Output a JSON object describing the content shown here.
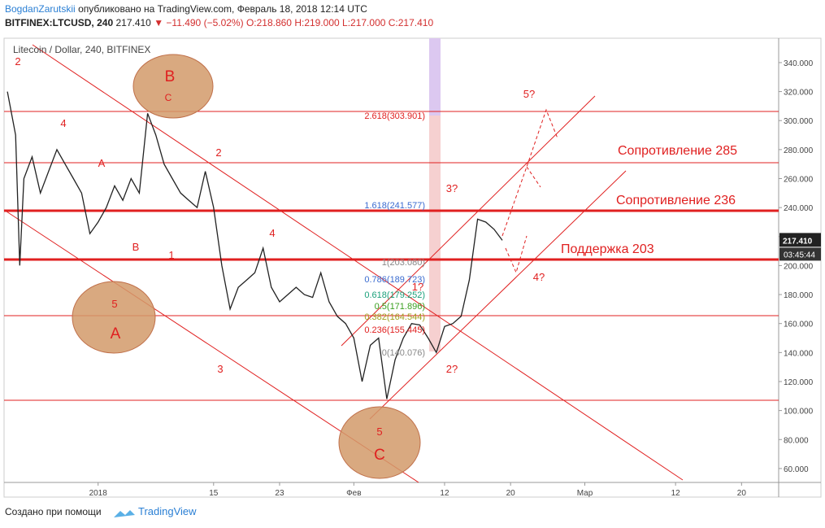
{
  "header": {
    "author": "BogdanZarutskii",
    "published": "опубликовано на TradingView.com, Февраль 18, 2018 12:14 UTC",
    "symbol": "BITFINEX:LTCUSD, 240",
    "last": "217.410",
    "change": "▼ −11.490 (−5.02%)",
    "ohlc": "O:218.860 H:219.000 L:217.000 C:217.410"
  },
  "chart_data": {
    "type": "line",
    "title": "Litecoin / Dollar, 240, BITFINEX",
    "color": "#222222",
    "x": [
      -11,
      -10,
      -9.5,
      -9,
      -8,
      -7,
      -6,
      -5,
      -4,
      -3,
      -2,
      -1,
      0,
      1,
      2,
      3,
      4,
      5,
      6,
      7,
      8,
      9,
      10,
      11,
      12,
      13,
      14,
      15,
      16,
      17,
      18,
      19,
      20,
      21,
      22,
      23,
      24,
      25,
      26,
      27,
      28,
      29,
      30,
      31,
      32,
      33,
      34,
      35,
      36,
      37,
      38,
      39,
      40,
      41,
      42,
      43,
      44,
      45,
      46,
      47,
      48,
      49
    ],
    "values": [
      320,
      290,
      200,
      260,
      275,
      250,
      265,
      280,
      270,
      260,
      250,
      222,
      230,
      240,
      255,
      245,
      260,
      250,
      305,
      290,
      270,
      260,
      250,
      245,
      240,
      265,
      240,
      200,
      170,
      185,
      190,
      195,
      212,
      185,
      175,
      180,
      185,
      180,
      178,
      195,
      175,
      165,
      160,
      150,
      120,
      145,
      150,
      108,
      135,
      150,
      160,
      159,
      150,
      140,
      158,
      160,
      165,
      190,
      232,
      230,
      225,
      217.41
    ],
    "xlim": [
      -11.4,
      82.5
    ],
    "ylim": [
      50.4,
      356.8
    ],
    "xticks": [
      {
        "value": 0,
        "label": "2018"
      },
      {
        "value": 14,
        "label": "15"
      },
      {
        "value": 22,
        "label": "23"
      },
      {
        "value": 31,
        "label": "Фев"
      },
      {
        "value": 42,
        "label": "12"
      },
      {
        "value": 50,
        "label": "20"
      },
      {
        "value": 59,
        "label": "Мар"
      },
      {
        "value": 70,
        "label": "12"
      },
      {
        "value": 78,
        "label": "20"
      }
    ],
    "yticks": [
      {
        "value": 60,
        "label": "60.000"
      },
      {
        "value": 80,
        "label": "80.000"
      },
      {
        "value": 100,
        "label": "100.000"
      },
      {
        "value": 120,
        "label": "120.000"
      },
      {
        "value": 140,
        "label": "140.000"
      },
      {
        "value": 160,
        "label": "160.000"
      },
      {
        "value": 180,
        "label": "180.000"
      },
      {
        "value": 200,
        "label": "200.000"
      },
      {
        "value": 220,
        "label": "220.000"
      },
      {
        "value": 240,
        "label": "240.000"
      },
      {
        "value": 260,
        "label": "260.000"
      },
      {
        "value": 280,
        "label": "280.000"
      },
      {
        "value": 300,
        "label": "300.000"
      },
      {
        "value": 320,
        "label": "320.000"
      },
      {
        "value": 340,
        "label": "340.000"
      }
    ],
    "last_price": {
      "value": 217.41,
      "label": "217.410"
    },
    "countdown": "03:45:44",
    "annotations": [
      "2",
      "4",
      "A",
      "B",
      "1",
      "2",
      "4",
      "3",
      "5",
      "A",
      "B",
      "C",
      "5",
      "C",
      "3?",
      "1?",
      "2?",
      "4?",
      "5?",
      "Сопротивление 285",
      "Сопротивление 236",
      "Поддержка 203",
      "2.618(303.901)",
      "1.618(241.577)",
      "1(203.080)",
      "0.786(189.723)",
      "0.618(179.252)",
      "0.5(171.896)",
      "0.382(164.544)",
      "0.236(155.445)",
      "0(140.076)"
    ]
  },
  "footer": {
    "created": "Создано при помощи",
    "brand": "TradingView"
  }
}
